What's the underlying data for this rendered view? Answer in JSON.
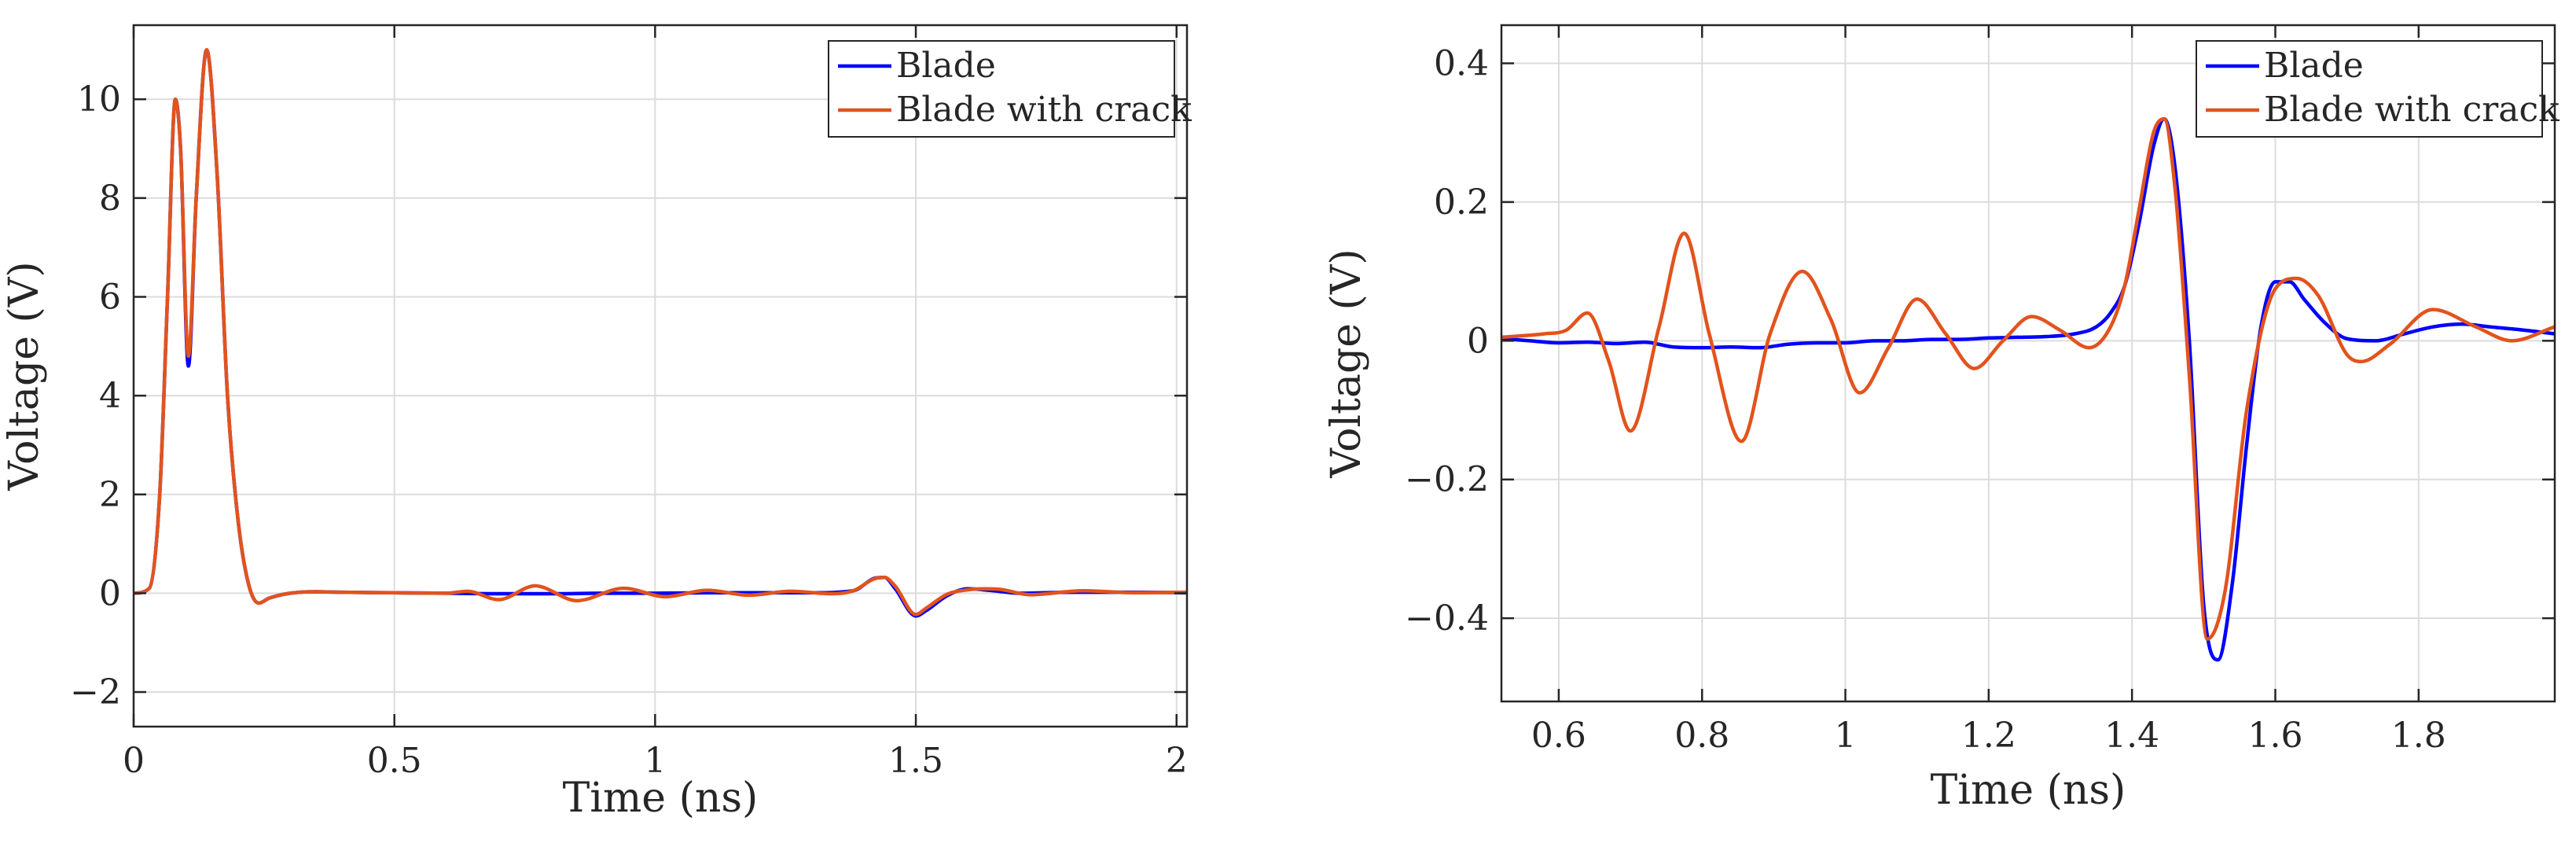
{
  "colors": {
    "blade": "#0000ff",
    "crack": "#e2531d",
    "axis": "#262626",
    "grid": "#dcdcdc"
  },
  "chart_data": [
    {
      "type": "line",
      "title": "",
      "xlabel": "Time (ns)",
      "ylabel": "Voltage (V)",
      "xlim": [
        0,
        2.02
      ],
      "ylim": [
        -2.7,
        11.5
      ],
      "xticks": [
        0,
        0.5,
        1,
        1.5,
        2
      ],
      "xtick_labels": [
        "0",
        "0.5",
        "1",
        "1.5",
        "2"
      ],
      "yticks": [
        -2,
        0,
        2,
        4,
        6,
        8,
        10
      ],
      "ytick_labels": [
        "−2",
        "0",
        "2",
        "4",
        "6",
        "8",
        "10"
      ],
      "grid": true,
      "legend_position": "top-right",
      "series": [
        {
          "name": "Blade",
          "x": [
            0,
            0.03,
            0.05,
            0.065,
            0.08,
            0.09,
            0.105,
            0.12,
            0.14,
            0.16,
            0.18,
            0.2,
            0.22,
            0.24,
            0.26,
            0.3,
            0.35,
            0.4,
            0.5,
            0.6,
            0.7,
            0.8,
            0.9,
            1.0,
            1.1,
            1.2,
            1.3,
            1.38,
            1.42,
            1.44,
            1.46,
            1.5,
            1.52,
            1.56,
            1.6,
            1.65,
            1.7,
            1.8,
            1.9,
            2.02
          ],
          "y": [
            0,
            0.1,
            2.0,
            6.0,
            10.0,
            9.0,
            4.6,
            8.0,
            11.0,
            8.5,
            4.0,
            1.5,
            0.2,
            -0.2,
            -0.1,
            0,
            0.03,
            0.02,
            0.01,
            0,
            -0.01,
            -0.01,
            0,
            0,
            0.01,
            0.01,
            0.01,
            0.05,
            0.3,
            0.32,
            0.1,
            -0.46,
            -0.35,
            -0.05,
            0.09,
            0.05,
            0.0,
            0.02,
            0.02,
            0.01
          ]
        },
        {
          "name": "Blade with crack",
          "x": [
            0,
            0.03,
            0.05,
            0.065,
            0.08,
            0.09,
            0.105,
            0.12,
            0.14,
            0.16,
            0.18,
            0.2,
            0.22,
            0.24,
            0.26,
            0.3,
            0.35,
            0.4,
            0.5,
            0.55,
            0.6,
            0.64,
            0.7,
            0.77,
            0.85,
            0.94,
            1.02,
            1.1,
            1.18,
            1.26,
            1.34,
            1.38,
            1.42,
            1.44,
            1.46,
            1.5,
            1.52,
            1.56,
            1.6,
            1.63,
            1.66,
            1.72,
            1.82,
            1.92,
            2.02
          ],
          "y": [
            0,
            0.1,
            2.0,
            6.0,
            10.0,
            9.0,
            4.8,
            8.0,
            11.0,
            8.5,
            4.0,
            1.5,
            0.2,
            -0.2,
            -0.1,
            0,
            0.03,
            0.02,
            0.01,
            0.005,
            0.0,
            0.04,
            -0.13,
            0.15,
            -0.15,
            0.1,
            -0.07,
            0.06,
            -0.04,
            0.04,
            -0.01,
            0.05,
            0.29,
            0.32,
            0.15,
            -0.43,
            -0.3,
            -0.02,
            0.07,
            0.09,
            0.08,
            -0.03,
            0.05,
            0.01,
            0.02
          ]
        }
      ]
    },
    {
      "type": "line",
      "title": "",
      "xlabel": "Time (ns)",
      "ylabel": "Voltage (V)",
      "xlim": [
        0.52,
        1.99
      ],
      "ylim": [
        -0.52,
        0.455
      ],
      "xticks": [
        0.6,
        0.8,
        1,
        1.2,
        1.4,
        1.6,
        1.8
      ],
      "xtick_labels": [
        "0.6",
        "0.8",
        "1",
        "1.2",
        "1.4",
        "1.6",
        "1.8"
      ],
      "yticks": [
        -0.4,
        -0.2,
        0,
        0.2,
        0.4
      ],
      "ytick_labels": [
        "−0.4",
        "−0.2",
        "0",
        "0.2",
        "0.4"
      ],
      "grid": true,
      "legend_position": "top-right",
      "series": [
        {
          "name": "Blade",
          "x": [
            0.52,
            0.56,
            0.6,
            0.64,
            0.68,
            0.72,
            0.76,
            0.8,
            0.84,
            0.88,
            0.92,
            0.96,
            1.0,
            1.04,
            1.08,
            1.12,
            1.16,
            1.2,
            1.24,
            1.28,
            1.32,
            1.35,
            1.37,
            1.39,
            1.41,
            1.43,
            1.445,
            1.46,
            1.48,
            1.5,
            1.52,
            1.54,
            1.56,
            1.58,
            1.6,
            1.62,
            1.64,
            1.67,
            1.7,
            1.74,
            1.78,
            1.82,
            1.86,
            1.9,
            1.95,
            1.99
          ],
          "y": [
            0.003,
            0.0,
            -0.003,
            -0.002,
            -0.004,
            -0.002,
            -0.009,
            -0.01,
            -0.009,
            -0.01,
            -0.005,
            -0.003,
            -0.003,
            0.0,
            0.0,
            0.002,
            0.002,
            0.004,
            0.005,
            0.006,
            0.01,
            0.02,
            0.04,
            0.08,
            0.17,
            0.28,
            0.32,
            0.25,
            0.0,
            -0.38,
            -0.46,
            -0.35,
            -0.15,
            0.02,
            0.085,
            0.085,
            0.06,
            0.025,
            0.003,
            0.0,
            0.01,
            0.02,
            0.024,
            0.02,
            0.015,
            0.01
          ]
        },
        {
          "name": "Blade with crack",
          "x": [
            0.52,
            0.58,
            0.61,
            0.64,
            0.67,
            0.7,
            0.74,
            0.775,
            0.81,
            0.855,
            0.895,
            0.94,
            0.98,
            1.02,
            1.06,
            1.1,
            1.14,
            1.18,
            1.22,
            1.26,
            1.3,
            1.34,
            1.37,
            1.39,
            1.41,
            1.43,
            1.445,
            1.46,
            1.48,
            1.505,
            1.53,
            1.56,
            1.6,
            1.63,
            1.66,
            1.7,
            1.72,
            1.76,
            1.82,
            1.88,
            1.93,
            1.99
          ],
          "y": [
            0.005,
            0.01,
            0.015,
            0.04,
            -0.03,
            -0.13,
            0.02,
            0.155,
            0.01,
            -0.145,
            0.01,
            0.1,
            0.03,
            -0.075,
            -0.01,
            0.06,
            0.01,
            -0.04,
            0.0,
            0.035,
            0.015,
            -0.01,
            0.02,
            0.08,
            0.19,
            0.3,
            0.32,
            0.22,
            -0.05,
            -0.43,
            -0.36,
            -0.1,
            0.075,
            0.09,
            0.065,
            -0.02,
            -0.03,
            -0.005,
            0.045,
            0.02,
            0.0,
            0.02
          ]
        }
      ]
    }
  ]
}
